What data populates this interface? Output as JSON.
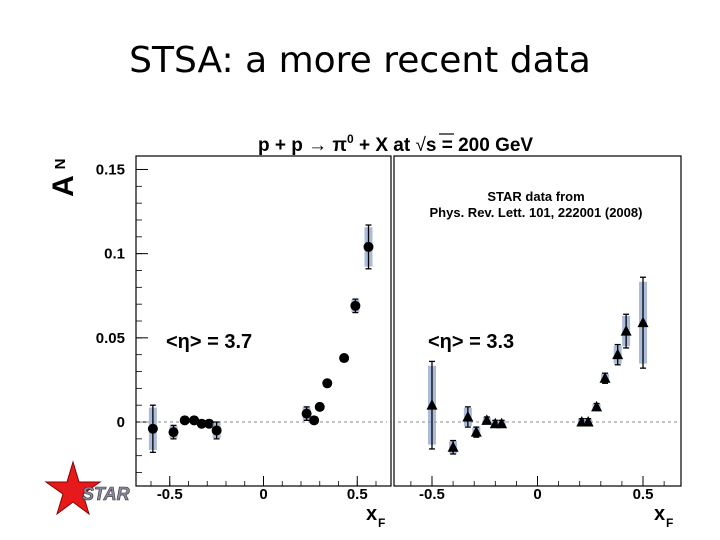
{
  "slide": {
    "title": "STSA: a more recent data"
  },
  "logo": {
    "text": "STAR"
  },
  "chart_data": {
    "type": "scatter",
    "title": "p + p → π⁰ + X at √s = 200 GeV",
    "ylabel": "A_N",
    "ylabel_main": "A",
    "ylabel_sub": "N",
    "xlabel": "x_F",
    "xlabel_main": "x",
    "xlabel_sub": "F",
    "ylim": [
      -0.038,
      0.158
    ],
    "yticks": [
      0,
      0.05,
      0.1,
      0.15
    ],
    "ytick_labels": [
      "0",
      "0.05",
      "0.1",
      "0.15"
    ],
    "annotation": [
      "STAR data from",
      "Phys. Rev. Lett. 101, 222001 (2008)"
    ],
    "panels": [
      {
        "name": "eta-3.7",
        "label": "<η> = 3.7",
        "marker": "circle",
        "xlim": [
          -0.68,
          0.68
        ],
        "xticks": [
          -0.5,
          0,
          0.5
        ],
        "xtick_labels": [
          "-0.5",
          "0",
          "0.5"
        ],
        "x": [
          -0.59,
          -0.48,
          -0.42,
          -0.37,
          -0.33,
          -0.29,
          -0.25,
          0.23,
          0.27,
          0.3,
          0.34,
          0.43,
          0.49,
          0.56
        ],
        "y": [
          -0.004,
          -0.006,
          0.001,
          0.001,
          -0.001,
          -0.001,
          -0.005,
          0.005,
          0.001,
          0.009,
          0.023,
          0.038,
          0.069,
          0.104
        ],
        "yerr": [
          0.014,
          0.004,
          0.002,
          0.002,
          0.002,
          0.002,
          0.005,
          0.004,
          0.002,
          0.002,
          0.002,
          0.002,
          0.004,
          0.013
        ]
      },
      {
        "name": "eta-3.3",
        "label": "<η> = 3.3",
        "marker": "triangle",
        "xlim": [
          -0.68,
          0.68
        ],
        "xticks": [
          -0.5,
          0,
          0.5
        ],
        "xtick_labels": [
          "-0.5",
          "0",
          "0.5"
        ],
        "x": [
          -0.5,
          -0.4,
          -0.33,
          -0.29,
          -0.24,
          -0.2,
          -0.17,
          0.21,
          0.24,
          0.28,
          0.32,
          0.38,
          0.42,
          0.5
        ],
        "y": [
          0.01,
          -0.015,
          0.003,
          -0.006,
          0.001,
          -0.001,
          -0.001,
          0.0,
          0.0,
          0.009,
          0.026,
          0.04,
          0.054,
          0.059
        ],
        "yerr": [
          0.026,
          0.004,
          0.006,
          0.003,
          0.002,
          0.002,
          0.002,
          0.002,
          0.002,
          0.002,
          0.003,
          0.006,
          0.01,
          0.027
        ]
      }
    ]
  }
}
